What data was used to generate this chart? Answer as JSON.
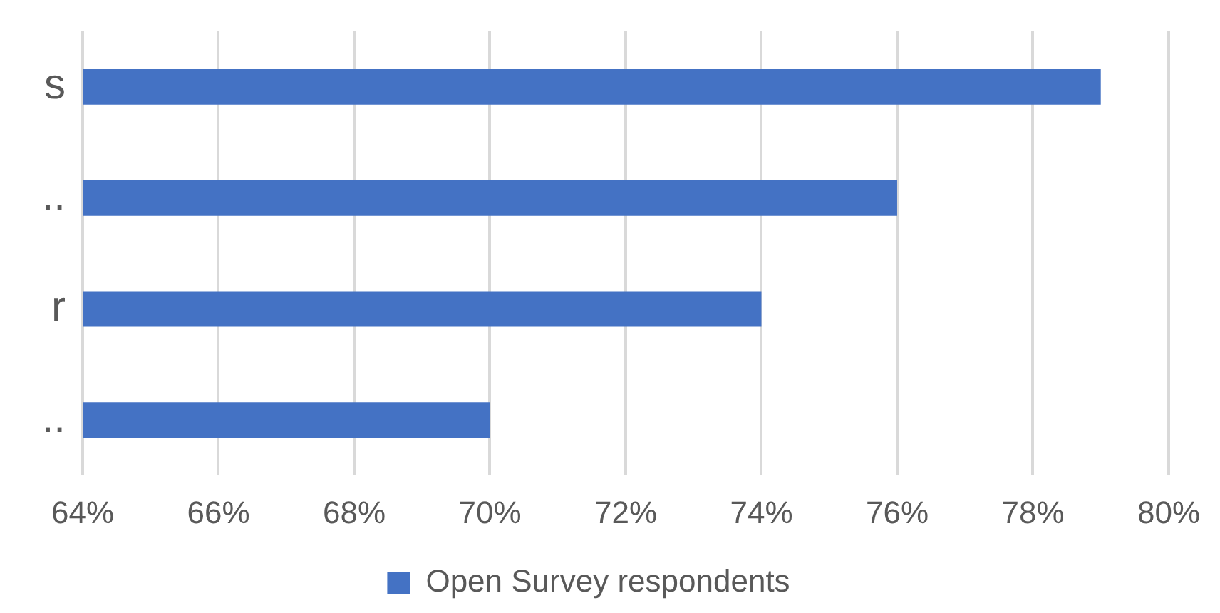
{
  "chart_data": {
    "type": "bar",
    "orientation": "horizontal",
    "categories": [
      "s",
      "..",
      "r",
      ".."
    ],
    "series": [
      {
        "name": "Open Survey respondents",
        "color": "#4472c4",
        "values": [
          79,
          76,
          74,
          70
        ]
      }
    ],
    "xlim": [
      64,
      80
    ],
    "xticks": [
      {
        "value": 64,
        "label": "64%"
      },
      {
        "value": 66,
        "label": "66%"
      },
      {
        "value": 68,
        "label": "68%"
      },
      {
        "value": 70,
        "label": "70%"
      },
      {
        "value": 72,
        "label": "72%"
      },
      {
        "value": 74,
        "label": "74%"
      },
      {
        "value": 76,
        "label": "76%"
      },
      {
        "value": 78,
        "label": "78%"
      },
      {
        "value": 80,
        "label": "80%"
      }
    ],
    "grid": "x",
    "legend": "bottom"
  }
}
